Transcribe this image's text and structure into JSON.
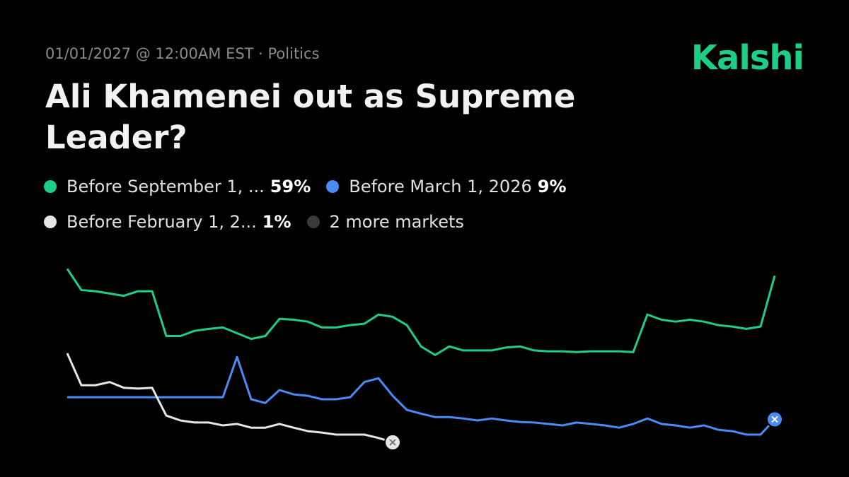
{
  "header": {
    "meta": "01/01/2027 @ 12:00AM EST · Politics",
    "brand": "Kalshi",
    "title": "Ali Khamenei out as Supreme Leader?"
  },
  "legend": {
    "more": "2 more markets",
    "more_color": "#3a3a3a"
  },
  "chart_data": {
    "type": "line",
    "ylim": [
      0,
      62
    ],
    "series": [
      {
        "name": "Before September 1, ...",
        "color": "#1fce86",
        "current": {
          "value": 59,
          "label": "59%"
        },
        "values": [
          61.4,
          54,
          53.6,
          52.8,
          52,
          53.6,
          53.6,
          38,
          38,
          39.8,
          40.5,
          41,
          39,
          37,
          38,
          44,
          43.7,
          43,
          41,
          41,
          41.8,
          42.3,
          45.5,
          44.7,
          41.8,
          34.4,
          31.4,
          34.4,
          33,
          33,
          33,
          34,
          34.4,
          33,
          32.7,
          32.7,
          32.4,
          32.7,
          32.7,
          32.7,
          32.4,
          45.5,
          43.7,
          43,
          43.7,
          43,
          41.8,
          41.3,
          40.5,
          41.3,
          59
        ]
      },
      {
        "name": "Before March 1, 2026",
        "color": "#4a8cf5",
        "current": {
          "value": 9,
          "label": "9%"
        },
        "values": [
          16.7,
          16.7,
          16.7,
          16.7,
          16.7,
          16.7,
          16.7,
          16.7,
          16.7,
          16.7,
          16.7,
          16.7,
          30.7,
          16,
          14.7,
          19.2,
          17.7,
          17.2,
          16,
          16,
          16.7,
          22,
          23.3,
          17.2,
          12.3,
          11,
          9.8,
          9.8,
          9.3,
          8.6,
          9.3,
          8.6,
          8.1,
          7.9,
          7.4,
          6.9,
          7.9,
          7.4,
          6.9,
          6.1,
          7.4,
          9.3,
          7.4,
          6.9,
          6.1,
          6.9,
          5.4,
          4.9,
          3.7,
          3.7,
          9
        ]
      },
      {
        "name": "Before February 1, 2...",
        "color": "#e6e6e6",
        "current": {
          "value": 1,
          "label": "1%"
        },
        "values": [
          32,
          20.9,
          20.9,
          22,
          20,
          19.7,
          20,
          10.3,
          8.6,
          7.9,
          7.9,
          6.9,
          7.4,
          6.1,
          6.1,
          7.4,
          6.1,
          4.9,
          4.4,
          3.7,
          3.7,
          3.7,
          2.5,
          1,
          null,
          null,
          null,
          null,
          null,
          null,
          null,
          null,
          null,
          null,
          null,
          null,
          null,
          null,
          null,
          null,
          null,
          null,
          null,
          null,
          null,
          null,
          null,
          null,
          null,
          null,
          null
        ]
      }
    ]
  }
}
